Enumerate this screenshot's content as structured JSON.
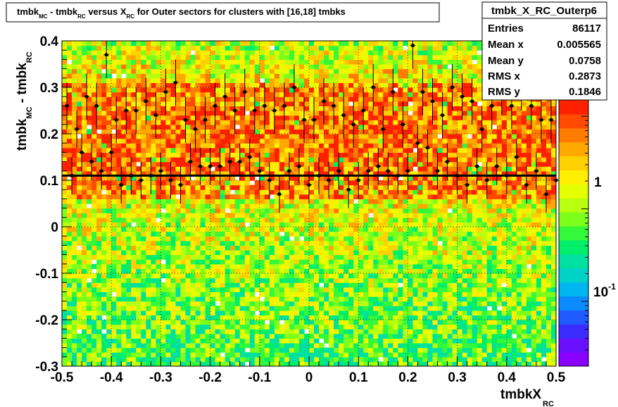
{
  "title": {
    "parts": [
      "tmbk",
      "MC",
      " - tmbk",
      "RC",
      " versus X",
      "RC",
      " for Outer sectors for clusters with [16,18] tmbks"
    ]
  },
  "stats": {
    "name": "tmbk_X_RC_Outerp6",
    "rows": [
      {
        "label": "Entries",
        "value": "86117"
      },
      {
        "label": "Mean x",
        "value": "0.005565"
      },
      {
        "label": "Mean y",
        "value": "0.0758"
      },
      {
        "label": "RMS x",
        "value": "0.2873"
      },
      {
        "label": "RMS y",
        "value": "0.1846"
      }
    ]
  },
  "axes": {
    "xlabel_main": "tmbkX",
    "xlabel_sub": "RC",
    "ylabel_parts": [
      "tmbk",
      "MC",
      " - tmbk",
      "RC"
    ],
    "xticks": [
      "-0.5",
      "-0.4",
      "-0.3",
      "-0.2",
      "-0.1",
      "0",
      "0.1",
      "0.2",
      "0.3",
      "0.4",
      "0.5"
    ],
    "yticks": [
      "-0.3",
      "-0.2",
      "-0.1",
      "0",
      "0.1",
      "0.2",
      "0.3",
      "0.4"
    ],
    "zticks": [
      {
        "base": "1",
        "exp": "",
        "log": 0
      },
      {
        "base": "10",
        "exp": "-1",
        "log": -1
      }
    ]
  },
  "chart_data": {
    "type": "heatmap",
    "title": "tmbk_MC - tmbk_RC versus X_RC for Outer sectors for clusters with [16,18] tmbks",
    "xlabel": "tmbkX_RC",
    "ylabel": "tmbk_MC - tmbk_RC",
    "xlim": [
      -0.5,
      0.5
    ],
    "ylim": [
      -0.3,
      0.4
    ],
    "z_scale": "log",
    "zlim": [
      0.02,
      15
    ],
    "grid": true,
    "fit_line_y": 0.11,
    "profile_points": [
      {
        "x": -0.49,
        "y": 0.26,
        "ey": 0.05
      },
      {
        "x": -0.47,
        "y": 0.21,
        "ey": 0.04
      },
      {
        "x": -0.45,
        "y": 0.28,
        "ey": 0.05
      },
      {
        "x": -0.43,
        "y": 0.26,
        "ey": 0.05
      },
      {
        "x": -0.41,
        "y": 0.37,
        "ey": 0.05
      },
      {
        "x": -0.39,
        "y": 0.23,
        "ey": 0.05
      },
      {
        "x": -0.37,
        "y": 0.25,
        "ey": 0.05
      },
      {
        "x": -0.35,
        "y": 0.25,
        "ey": 0.05
      },
      {
        "x": -0.33,
        "y": 0.27,
        "ey": 0.05
      },
      {
        "x": -0.31,
        "y": 0.24,
        "ey": 0.05
      },
      {
        "x": -0.29,
        "y": 0.29,
        "ey": 0.05
      },
      {
        "x": -0.27,
        "y": 0.31,
        "ey": 0.05
      },
      {
        "x": -0.25,
        "y": 0.23,
        "ey": 0.05
      },
      {
        "x": -0.23,
        "y": 0.21,
        "ey": 0.05
      },
      {
        "x": -0.21,
        "y": 0.23,
        "ey": 0.05
      },
      {
        "x": -0.19,
        "y": 0.26,
        "ey": 0.05
      },
      {
        "x": -0.17,
        "y": 0.28,
        "ey": 0.05
      },
      {
        "x": -0.15,
        "y": 0.25,
        "ey": 0.05
      },
      {
        "x": -0.13,
        "y": 0.29,
        "ey": 0.05
      },
      {
        "x": -0.11,
        "y": 0.25,
        "ey": 0.05
      },
      {
        "x": -0.09,
        "y": 0.26,
        "ey": 0.05
      },
      {
        "x": -0.07,
        "y": 0.25,
        "ey": 0.05
      },
      {
        "x": -0.05,
        "y": 0.26,
        "ey": 0.05
      },
      {
        "x": -0.03,
        "y": 0.3,
        "ey": 0.05
      },
      {
        "x": -0.01,
        "y": 0.23,
        "ey": 0.05
      },
      {
        "x": 0.01,
        "y": 0.23,
        "ey": 0.05
      },
      {
        "x": 0.03,
        "y": 0.27,
        "ey": 0.05
      },
      {
        "x": 0.05,
        "y": 0.26,
        "ey": 0.05
      },
      {
        "x": 0.07,
        "y": 0.24,
        "ey": 0.05
      },
      {
        "x": 0.09,
        "y": 0.22,
        "ey": 0.05
      },
      {
        "x": 0.11,
        "y": 0.25,
        "ey": 0.05
      },
      {
        "x": 0.13,
        "y": 0.3,
        "ey": 0.05
      },
      {
        "x": 0.15,
        "y": 0.21,
        "ey": 0.05
      },
      {
        "x": 0.17,
        "y": 0.29,
        "ey": 0.05
      },
      {
        "x": 0.19,
        "y": 0.22,
        "ey": 0.05
      },
      {
        "x": 0.21,
        "y": 0.39,
        "ey": 0.05
      },
      {
        "x": 0.23,
        "y": 0.29,
        "ey": 0.05
      },
      {
        "x": 0.25,
        "y": 0.27,
        "ey": 0.05
      },
      {
        "x": 0.27,
        "y": 0.24,
        "ey": 0.05
      },
      {
        "x": 0.29,
        "y": 0.3,
        "ey": 0.05
      },
      {
        "x": 0.31,
        "y": 0.28,
        "ey": 0.05
      },
      {
        "x": 0.33,
        "y": 0.27,
        "ey": 0.05
      },
      {
        "x": 0.35,
        "y": 0.21,
        "ey": 0.05
      },
      {
        "x": 0.37,
        "y": 0.26,
        "ey": 0.05
      },
      {
        "x": 0.39,
        "y": 0.29,
        "ey": 0.05
      },
      {
        "x": 0.41,
        "y": 0.26,
        "ey": 0.05
      },
      {
        "x": 0.43,
        "y": 0.3,
        "ey": 0.05
      },
      {
        "x": 0.45,
        "y": 0.26,
        "ey": 0.05
      },
      {
        "x": 0.47,
        "y": 0.23,
        "ey": 0.05
      },
      {
        "x": 0.49,
        "y": 0.23,
        "ey": 0.05
      },
      {
        "x": -0.48,
        "y": 0.11,
        "ey": 0.04
      },
      {
        "x": -0.46,
        "y": 0.16,
        "ey": 0.04
      },
      {
        "x": -0.44,
        "y": 0.14,
        "ey": 0.04
      },
      {
        "x": -0.42,
        "y": 0.12,
        "ey": 0.04
      },
      {
        "x": -0.4,
        "y": 0.16,
        "ey": 0.04
      },
      {
        "x": -0.38,
        "y": 0.09,
        "ey": 0.04
      },
      {
        "x": -0.36,
        "y": 0.11,
        "ey": 0.04
      },
      {
        "x": -0.34,
        "y": 0.1,
        "ey": 0.04
      },
      {
        "x": -0.32,
        "y": 0.11,
        "ey": 0.04
      },
      {
        "x": -0.3,
        "y": 0.12,
        "ey": 0.04
      },
      {
        "x": -0.28,
        "y": 0.1,
        "ey": 0.04
      },
      {
        "x": -0.26,
        "y": 0.09,
        "ey": 0.04
      },
      {
        "x": -0.24,
        "y": 0.14,
        "ey": 0.04
      },
      {
        "x": -0.22,
        "y": 0.13,
        "ey": 0.04
      },
      {
        "x": -0.2,
        "y": 0.13,
        "ey": 0.04
      },
      {
        "x": -0.18,
        "y": 0.13,
        "ey": 0.04
      },
      {
        "x": -0.16,
        "y": 0.14,
        "ey": 0.04
      },
      {
        "x": -0.14,
        "y": 0.14,
        "ey": 0.04
      },
      {
        "x": -0.12,
        "y": 0.15,
        "ey": 0.04
      },
      {
        "x": -0.1,
        "y": 0.12,
        "ey": 0.04
      },
      {
        "x": -0.08,
        "y": 0.1,
        "ey": 0.04
      },
      {
        "x": -0.06,
        "y": 0.07,
        "ey": 0.04
      },
      {
        "x": -0.04,
        "y": 0.12,
        "ey": 0.04
      },
      {
        "x": -0.02,
        "y": 0.13,
        "ey": 0.04
      },
      {
        "x": 0.0,
        "y": 0.09,
        "ey": 0.04
      },
      {
        "x": 0.02,
        "y": 0.11,
        "ey": 0.04
      },
      {
        "x": 0.04,
        "y": 0.1,
        "ey": 0.04
      },
      {
        "x": 0.06,
        "y": 0.12,
        "ey": 0.04
      },
      {
        "x": 0.08,
        "y": 0.08,
        "ey": 0.04
      },
      {
        "x": 0.1,
        "y": 0.1,
        "ey": 0.04
      },
      {
        "x": 0.12,
        "y": 0.12,
        "ey": 0.04
      },
      {
        "x": 0.14,
        "y": 0.13,
        "ey": 0.04
      },
      {
        "x": 0.16,
        "y": 0.12,
        "ey": 0.04
      },
      {
        "x": 0.18,
        "y": 0.11,
        "ey": 0.04
      },
      {
        "x": 0.2,
        "y": 0.12,
        "ey": 0.04
      },
      {
        "x": 0.22,
        "y": 0.18,
        "ey": 0.04
      },
      {
        "x": 0.24,
        "y": 0.17,
        "ey": 0.04
      },
      {
        "x": 0.26,
        "y": 0.12,
        "ey": 0.04
      },
      {
        "x": 0.28,
        "y": 0.14,
        "ey": 0.04
      },
      {
        "x": 0.3,
        "y": 0.11,
        "ey": 0.04
      },
      {
        "x": 0.32,
        "y": 0.09,
        "ey": 0.04
      },
      {
        "x": 0.34,
        "y": 0.13,
        "ey": 0.04
      },
      {
        "x": 0.36,
        "y": 0.1,
        "ey": 0.04
      },
      {
        "x": 0.38,
        "y": 0.13,
        "ey": 0.04
      },
      {
        "x": 0.4,
        "y": 0.11,
        "ey": 0.04
      },
      {
        "x": 0.42,
        "y": 0.15,
        "ey": 0.04
      },
      {
        "x": 0.44,
        "y": 0.09,
        "ey": 0.04
      },
      {
        "x": 0.46,
        "y": 0.12,
        "ey": 0.04
      },
      {
        "x": 0.48,
        "y": 0.07,
        "ey": 0.04
      },
      {
        "x": 0.5,
        "y": 0.1,
        "ey": 0.04
      }
    ]
  }
}
